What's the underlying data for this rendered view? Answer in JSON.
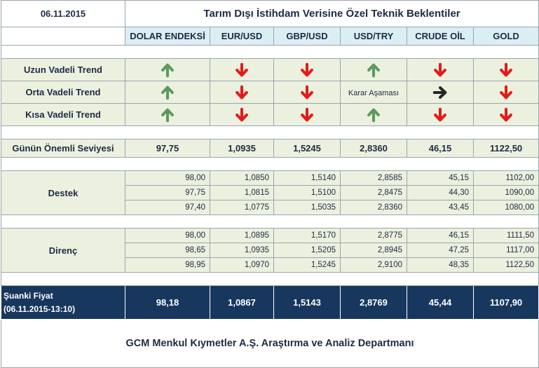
{
  "header": {
    "date": "06.11.2015",
    "title": "Tarım Dışı İstihdam Verisine Özel Teknik Beklentiler"
  },
  "columns": [
    "DOLAR ENDEKSİ",
    "EUR/USD",
    "GBP/USD",
    "USD/TRY",
    "CRUDE OİL",
    "GOLD"
  ],
  "trends": [
    {
      "label": "Uzun Vadeli Trend",
      "items": [
        {
          "icon": "arrow-up-icon",
          "text": ""
        },
        {
          "icon": "arrow-down-icon",
          "text": ""
        },
        {
          "icon": "arrow-down-icon",
          "text": ""
        },
        {
          "icon": "arrow-up-icon",
          "text": ""
        },
        {
          "icon": "arrow-down-icon",
          "text": ""
        },
        {
          "icon": "arrow-down-icon",
          "text": ""
        }
      ]
    },
    {
      "label": "Orta Vadeli Trend",
      "items": [
        {
          "icon": "arrow-up-icon",
          "text": ""
        },
        {
          "icon": "arrow-down-icon",
          "text": ""
        },
        {
          "icon": "arrow-down-icon",
          "text": ""
        },
        {
          "icon": "",
          "text": "Karar Aşaması"
        },
        {
          "icon": "arrow-right-icon",
          "text": ""
        },
        {
          "icon": "arrow-down-icon",
          "text": ""
        }
      ]
    },
    {
      "label": "Kısa Vadeli Trend",
      "items": [
        {
          "icon": "arrow-up-icon",
          "text": ""
        },
        {
          "icon": "arrow-down-icon",
          "text": ""
        },
        {
          "icon": "arrow-down-icon",
          "text": ""
        },
        {
          "icon": "arrow-up-icon",
          "text": ""
        },
        {
          "icon": "arrow-down-icon",
          "text": ""
        },
        {
          "icon": "arrow-down-icon",
          "text": ""
        }
      ]
    }
  ],
  "key_level": {
    "label": "Günün Önemli Seviyesi",
    "values": [
      "97,75",
      "1,0935",
      "1,5245",
      "2,8360",
      "46,15",
      "1122,50"
    ]
  },
  "support": {
    "label": "Destek",
    "rows": [
      [
        "98,00",
        "1,0850",
        "1,5140",
        "2,8585",
        "45,15",
        "1102,00"
      ],
      [
        "97,75",
        "1,0815",
        "1,5100",
        "2,8475",
        "44,30",
        "1090,00"
      ],
      [
        "97,40",
        "1,0775",
        "1,5035",
        "2,8360",
        "43,45",
        "1080,00"
      ]
    ]
  },
  "resistance": {
    "label": "Direnç",
    "rows": [
      [
        "98,00",
        "1,0895",
        "1,5170",
        "2,8775",
        "46,15",
        "1111,50"
      ],
      [
        "98,65",
        "1,0935",
        "1,5205",
        "2,8945",
        "47,25",
        "1117,00"
      ],
      [
        "98,95",
        "1,0970",
        "1,5245",
        "2,9100",
        "48,35",
        "1122,50"
      ]
    ]
  },
  "current_price": {
    "label_line1": "Şuanki Fiyat",
    "label_line2": "(06.11.2015-13:10)",
    "values": [
      "98,18",
      "1,0867",
      "1,5143",
      "2,8769",
      "45,44",
      "1107,90"
    ]
  },
  "footer": "GCM Menkul Kıymetler A.Ş. Araştırma ve Analiz Departmanı",
  "colors": {
    "up": "#5b9a5d",
    "down": "#e31b1b",
    "neutral": "#262626",
    "header_bg": "#dbeef4",
    "cell_bg": "#ebf1de",
    "price_bg": "#17375e"
  }
}
